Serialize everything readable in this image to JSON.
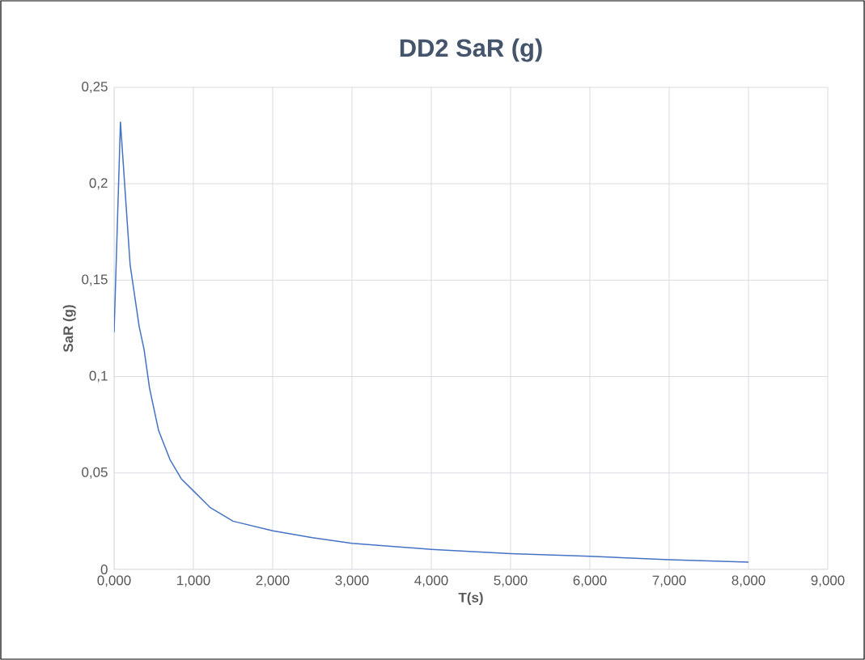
{
  "chart_data": {
    "type": "line",
    "title": "DD2 SaR (g)",
    "xlabel": "T(s)",
    "ylabel": "SaR (g)",
    "x": [
      0,
      0.08,
      0.202,
      0.316,
      0.378,
      0.447,
      0.561,
      0.704,
      0.847,
      1.018,
      1.214,
      1.5,
      2.0,
      2.5,
      3.0,
      4.0,
      5.0,
      6.0,
      7.0,
      8.0
    ],
    "series": [
      {
        "color": "#4472c4",
        "values": [
          0.123,
          0.232,
          0.158,
          0.126,
          0.114,
          0.094,
          0.072,
          0.057,
          0.047,
          0.04,
          0.032,
          0.025,
          0.02,
          0.0165,
          0.0135,
          0.0104,
          0.0082,
          0.0068,
          0.005,
          0.0038
        ]
      }
    ],
    "xlim": [
      0,
      9
    ],
    "ylim": [
      0,
      0.25
    ],
    "xticks": [
      {
        "value": 0,
        "label": "0,000"
      },
      {
        "value": 1,
        "label": "1,000"
      },
      {
        "value": 2,
        "label": "2,000"
      },
      {
        "value": 3,
        "label": "3,000"
      },
      {
        "value": 4,
        "label": "4,000"
      },
      {
        "value": 5,
        "label": "5,000"
      },
      {
        "value": 6,
        "label": "6,000"
      },
      {
        "value": 7,
        "label": "7,000"
      },
      {
        "value": 8,
        "label": "8,000"
      },
      {
        "value": 9,
        "label": "9,000"
      }
    ],
    "yticks": [
      0,
      {
        "value": 0.05,
        "label": "0,05"
      },
      {
        "value": 0.1,
        "label": "0,1"
      },
      {
        "value": 0.15,
        "label": "0,15"
      },
      {
        "value": 0.2,
        "label": "0,2"
      },
      {
        "value": 0.25,
        "label": "0,25"
      }
    ],
    "grid": true,
    "marker": "none",
    "line_style": "solid"
  }
}
